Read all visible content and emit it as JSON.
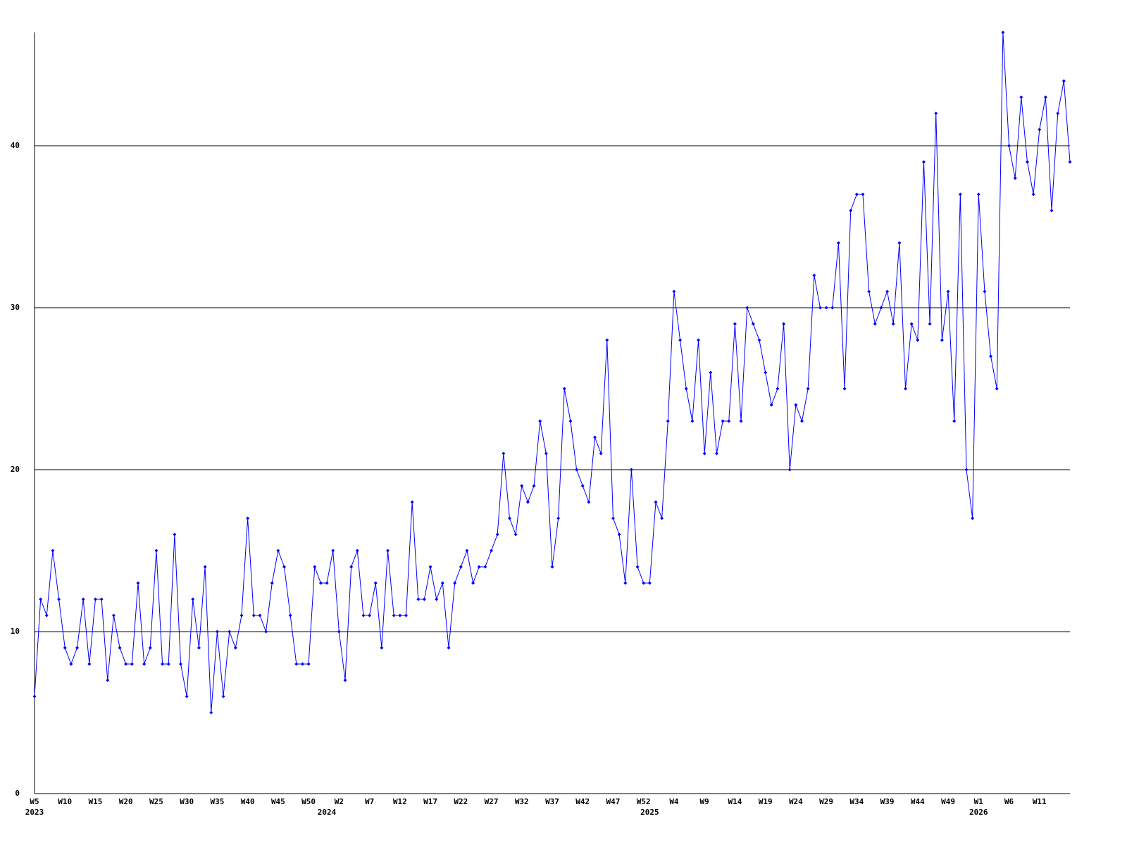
{
  "chart_data": {
    "type": "line",
    "categories": [
      "W5",
      null,
      null,
      null,
      null,
      "W10",
      null,
      null,
      null,
      null,
      "W15",
      null,
      null,
      null,
      null,
      "W20",
      null,
      null,
      null,
      null,
      "W25",
      null,
      null,
      null,
      null,
      "W30",
      null,
      null,
      null,
      null,
      "W35",
      null,
      null,
      null,
      null,
      "W40",
      null,
      null,
      null,
      null,
      "W45",
      null,
      null,
      null,
      null,
      "W50",
      null,
      null,
      null,
      null,
      "W2",
      null,
      null,
      null,
      null,
      "W7",
      null,
      null,
      null,
      null,
      "W12",
      null,
      null,
      null,
      null,
      "W17",
      null,
      null,
      null,
      null,
      "W22",
      null,
      null,
      null,
      null,
      "W27",
      null,
      null,
      null,
      null,
      "W32",
      null,
      null,
      null,
      null,
      "W37",
      null,
      null,
      null,
      null,
      "W42",
      null,
      null,
      null,
      null,
      "W47",
      null,
      null,
      null,
      null,
      "W52",
      null,
      null,
      null,
      null,
      "W4",
      null,
      null,
      null,
      null,
      "W9",
      null,
      null,
      null,
      null,
      "W14",
      null,
      null,
      null,
      null,
      "W19",
      null,
      null,
      null,
      null,
      "W24",
      null,
      null,
      null,
      null,
      "W29",
      null,
      null,
      null,
      null,
      "W34",
      null,
      null,
      null,
      null,
      "W39",
      null,
      null,
      null,
      null,
      "W44",
      null,
      null,
      null,
      null,
      "W49",
      null,
      null,
      null,
      null,
      "W1",
      null,
      null,
      null,
      null,
      "W6",
      null,
      null,
      null,
      null,
      "W11",
      null,
      null,
      null,
      null,
      null
    ],
    "years": [
      "2023",
      null,
      null,
      null,
      null,
      null,
      null,
      null,
      null,
      null,
      null,
      null,
      null,
      null,
      null,
      null,
      null,
      null,
      null,
      null,
      null,
      null,
      null,
      null,
      null,
      null,
      null,
      null,
      null,
      null,
      null,
      null,
      null,
      null,
      null,
      null,
      null,
      null,
      null,
      null,
      null,
      null,
      null,
      null,
      null,
      null,
      null,
      null,
      "2024",
      null,
      null,
      null,
      null,
      null,
      null,
      null,
      null,
      null,
      null,
      null,
      null,
      null,
      null,
      null,
      null,
      null,
      null,
      null,
      null,
      null,
      null,
      null,
      null,
      null,
      null,
      null,
      null,
      null,
      null,
      null,
      null,
      null,
      null,
      null,
      null,
      null,
      null,
      null,
      null,
      null,
      null,
      null,
      null,
      null,
      null,
      null,
      null,
      null,
      null,
      null,
      null,
      "2025",
      null,
      null,
      null,
      null,
      null,
      null,
      null,
      null,
      null,
      null,
      null,
      null,
      null,
      null,
      null,
      null,
      null,
      null,
      null,
      null,
      null,
      null,
      null,
      null,
      null,
      null,
      null,
      null,
      null,
      null,
      null,
      null,
      null,
      null,
      null,
      null,
      null,
      null,
      null,
      null,
      null,
      null,
      null,
      null,
      null,
      null,
      null,
      null,
      null,
      null,
      null,
      null,
      null,
      "2026",
      null,
      null,
      null,
      null,
      null,
      null,
      null,
      null,
      null,
      null,
      null,
      null,
      null,
      null,
      null
    ],
    "values": [
      6,
      12,
      11,
      15,
      12,
      9,
      8,
      9,
      12,
      8,
      12,
      12,
      7,
      11,
      9,
      8,
      8,
      13,
      8,
      9,
      15,
      8,
      8,
      16,
      8,
      6,
      12,
      9,
      14,
      5,
      10,
      6,
      10,
      9,
      11,
      17,
      11,
      11,
      10,
      13,
      15,
      14,
      11,
      8,
      8,
      8,
      14,
      13,
      13,
      15,
      10,
      7,
      14,
      15,
      11,
      11,
      13,
      9,
      15,
      11,
      11,
      11,
      18,
      12,
      12,
      14,
      12,
      13,
      9,
      13,
      14,
      15,
      13,
      14,
      14,
      15,
      16,
      21,
      17,
      16,
      19,
      18,
      19,
      23,
      21,
      14,
      17,
      25,
      23,
      20,
      19,
      18,
      22,
      21,
      28,
      17,
      16,
      13,
      20,
      14,
      13,
      13,
      18,
      17,
      23,
      31,
      28,
      25,
      23,
      28,
      21,
      26,
      21,
      23,
      23,
      29,
      23,
      30,
      29,
      28,
      26,
      24,
      25,
      29,
      20,
      24,
      23,
      25,
      32,
      30,
      30,
      30,
      34,
      25,
      36,
      37,
      37,
      31,
      29,
      30,
      31,
      29,
      34,
      25,
      29,
      28,
      39,
      29,
      42,
      28,
      31,
      23,
      37,
      20,
      17,
      37,
      31,
      27,
      25,
      47,
      40,
      38,
      43,
      39,
      37,
      41,
      43,
      36,
      42,
      44,
      39
    ],
    "color": "#0000ff",
    "ylim": [
      0,
      47
    ],
    "yticks": [
      0,
      10,
      20,
      30,
      40
    ],
    "grid": true
  }
}
